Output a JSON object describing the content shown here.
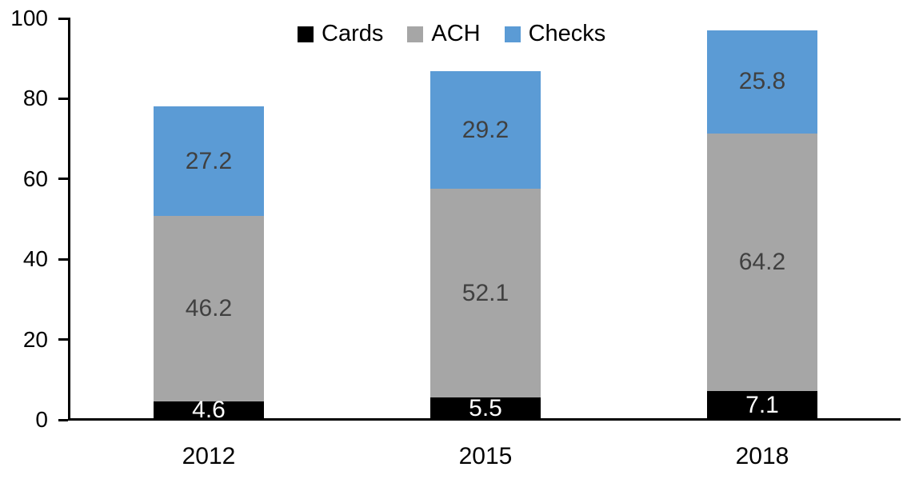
{
  "chart_data": {
    "type": "bar",
    "stacked": true,
    "categories": [
      "2012",
      "2015",
      "2018"
    ],
    "series": [
      {
        "name": "Cards",
        "color": "#000000",
        "label_color": "#FFFFFF",
        "values": [
          4.6,
          5.5,
          7.1
        ]
      },
      {
        "name": "ACH",
        "color": "#A6A6A6",
        "label_color": "#404040",
        "values": [
          46.2,
          52.1,
          64.2
        ]
      },
      {
        "name": "Checks",
        "color": "#5B9BD5",
        "label_color": "#404040",
        "values": [
          27.2,
          29.2,
          25.8
        ]
      }
    ],
    "y_ticks": [
      0,
      20,
      40,
      60,
      80,
      100
    ],
    "ylim": [
      0,
      100
    ],
    "legend_position": "top",
    "grid": false,
    "axis_color": "#000000",
    "background_color": "#FFFFFF"
  }
}
